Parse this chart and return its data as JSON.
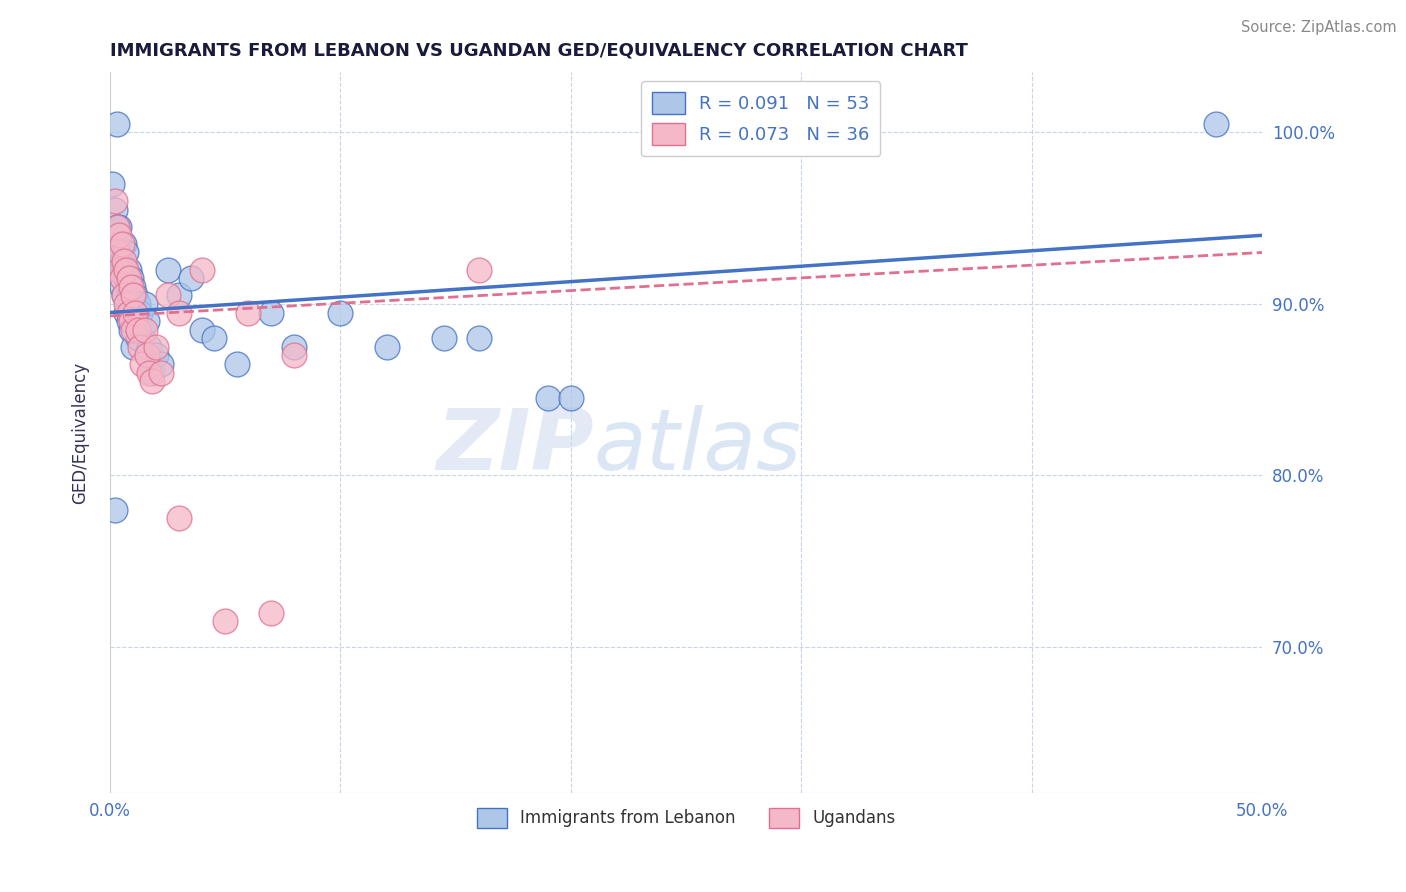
{
  "title": "IMMIGRANTS FROM LEBANON VS UGANDAN GED/EQUIVALENCY CORRELATION CHART",
  "source": "Source: ZipAtlas.com",
  "ylabel": "GED/Equivalency",
  "xlim": [
    0.0,
    0.5
  ],
  "ylim": [
    0.615,
    1.035
  ],
  "xticks": [
    0.0,
    0.1,
    0.2,
    0.3,
    0.4,
    0.5
  ],
  "xticklabels": [
    "0.0%",
    "",
    "",
    "",
    "",
    "50.0%"
  ],
  "yticks": [
    0.7,
    0.8,
    0.9,
    1.0
  ],
  "yticklabels": [
    "70.0%",
    "80.0%",
    "90.0%",
    "100.0%"
  ],
  "blue_scatter": [
    [
      0.001,
      0.97
    ],
    [
      0.002,
      0.955
    ],
    [
      0.003,
      0.945
    ],
    [
      0.003,
      0.935
    ],
    [
      0.004,
      0.93
    ],
    [
      0.004,
      0.945
    ],
    [
      0.005,
      0.925
    ],
    [
      0.005,
      0.92
    ],
    [
      0.005,
      0.91
    ],
    [
      0.006,
      0.935
    ],
    [
      0.006,
      0.92
    ],
    [
      0.006,
      0.905
    ],
    [
      0.007,
      0.93
    ],
    [
      0.007,
      0.915
    ],
    [
      0.007,
      0.895
    ],
    [
      0.008,
      0.92
    ],
    [
      0.008,
      0.905
    ],
    [
      0.008,
      0.89
    ],
    [
      0.009,
      0.915
    ],
    [
      0.009,
      0.9
    ],
    [
      0.009,
      0.885
    ],
    [
      0.01,
      0.91
    ],
    [
      0.01,
      0.895
    ],
    [
      0.01,
      0.875
    ],
    [
      0.011,
      0.905
    ],
    [
      0.011,
      0.89
    ],
    [
      0.012,
      0.9
    ],
    [
      0.012,
      0.88
    ],
    [
      0.013,
      0.895
    ],
    [
      0.014,
      0.885
    ],
    [
      0.015,
      0.9
    ],
    [
      0.016,
      0.89
    ],
    [
      0.017,
      0.875
    ],
    [
      0.018,
      0.86
    ],
    [
      0.02,
      0.87
    ],
    [
      0.022,
      0.865
    ],
    [
      0.025,
      0.92
    ],
    [
      0.03,
      0.905
    ],
    [
      0.035,
      0.915
    ],
    [
      0.04,
      0.885
    ],
    [
      0.045,
      0.88
    ],
    [
      0.055,
      0.865
    ],
    [
      0.07,
      0.895
    ],
    [
      0.08,
      0.875
    ],
    [
      0.1,
      0.895
    ],
    [
      0.12,
      0.875
    ],
    [
      0.145,
      0.88
    ],
    [
      0.16,
      0.88
    ],
    [
      0.19,
      0.845
    ],
    [
      0.2,
      0.845
    ],
    [
      0.003,
      1.005
    ],
    [
      0.48,
      1.005
    ],
    [
      0.002,
      0.78
    ]
  ],
  "pink_scatter": [
    [
      0.002,
      0.96
    ],
    [
      0.003,
      0.945
    ],
    [
      0.003,
      0.93
    ],
    [
      0.004,
      0.94
    ],
    [
      0.004,
      0.92
    ],
    [
      0.005,
      0.935
    ],
    [
      0.005,
      0.915
    ],
    [
      0.006,
      0.925
    ],
    [
      0.006,
      0.905
    ],
    [
      0.007,
      0.92
    ],
    [
      0.007,
      0.9
    ],
    [
      0.008,
      0.915
    ],
    [
      0.008,
      0.895
    ],
    [
      0.009,
      0.91
    ],
    [
      0.009,
      0.89
    ],
    [
      0.01,
      0.905
    ],
    [
      0.01,
      0.885
    ],
    [
      0.011,
      0.895
    ],
    [
      0.012,
      0.885
    ],
    [
      0.013,
      0.875
    ],
    [
      0.014,
      0.865
    ],
    [
      0.015,
      0.885
    ],
    [
      0.016,
      0.87
    ],
    [
      0.017,
      0.86
    ],
    [
      0.018,
      0.855
    ],
    [
      0.02,
      0.875
    ],
    [
      0.022,
      0.86
    ],
    [
      0.025,
      0.905
    ],
    [
      0.03,
      0.895
    ],
    [
      0.04,
      0.92
    ],
    [
      0.06,
      0.895
    ],
    [
      0.08,
      0.87
    ],
    [
      0.16,
      0.92
    ],
    [
      0.03,
      0.775
    ],
    [
      0.05,
      0.715
    ],
    [
      0.07,
      0.72
    ]
  ],
  "blue_line_x": [
    0.0,
    0.5
  ],
  "blue_line_y": [
    0.895,
    0.94
  ],
  "pink_line_x": [
    0.0,
    0.5
  ],
  "pink_line_y": [
    0.893,
    0.93
  ],
  "blue_color": "#4472c4",
  "pink_color": "#e07090",
  "blue_scatter_fill": "#aec6e8",
  "pink_scatter_fill": "#f4b8c8",
  "background_color": "#ffffff",
  "grid_color": "#c8d4e8",
  "title_color": "#1a1a3a",
  "source_color": "#888888",
  "axis_label_color": "#333355",
  "tick_color": "#4472c4",
  "watermark_zip_color": "#c8d8ee",
  "watermark_atlas_color": "#a8c0e0"
}
